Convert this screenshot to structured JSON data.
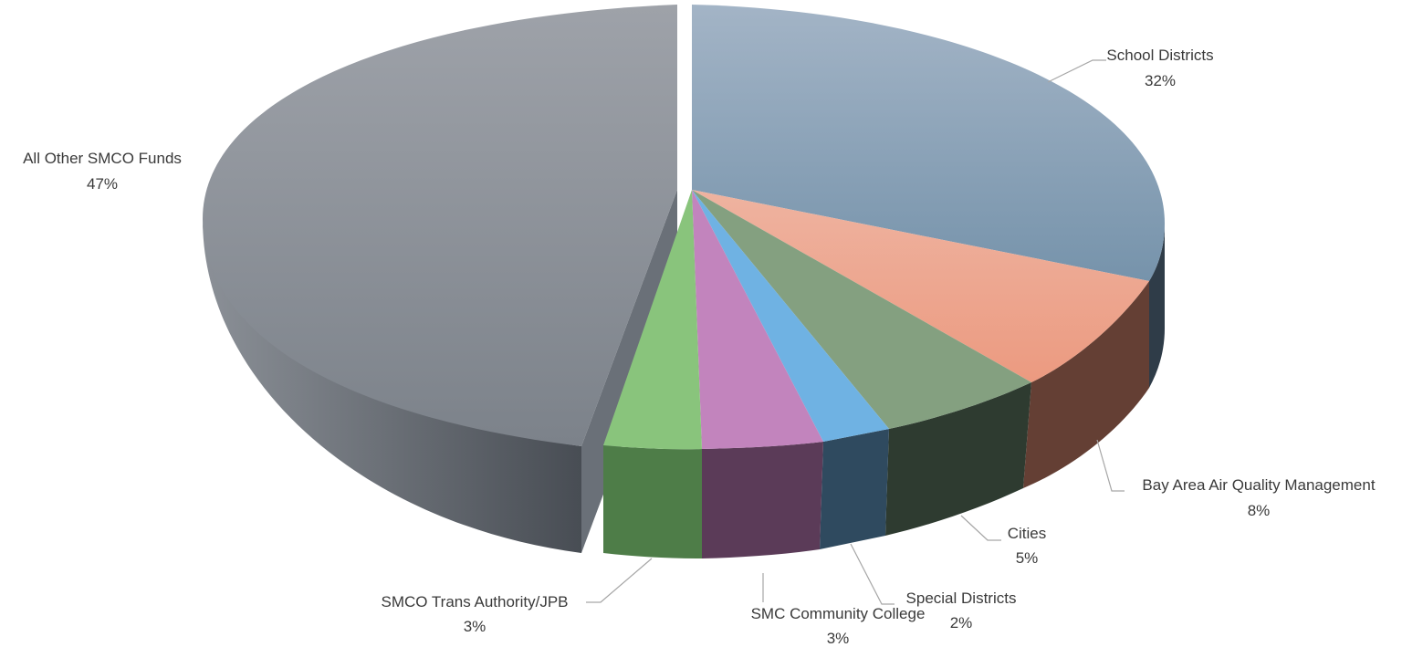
{
  "chart_data": {
    "type": "pie",
    "style": "3d-exploded",
    "title": "",
    "slices": [
      {
        "label": "School Districts",
        "value": 32,
        "value_label": "32%",
        "top_color": "#8fa4b8",
        "side_color": "#2f3c48"
      },
      {
        "label": "Bay Area Air Quality Management",
        "value": 8,
        "value_label": "8%",
        "top_color": "#ee9f86",
        "side_color": "#6a3f33"
      },
      {
        "label": "Cities",
        "value": 5,
        "value_label": "5%",
        "top_color": "#86a182",
        "side_color": "#2f3d30"
      },
      {
        "label": "Special Districts",
        "value": 2,
        "value_label": "2%",
        "top_color": "#6fb2e3",
        "side_color": "#2e4a5e"
      },
      {
        "label": "SMC Community College",
        "value": 3,
        "value_label": "3%",
        "top_color": "#c284bd",
        "side_color": "#5a3a57"
      },
      {
        "label": "SMCO Trans Authority/JPB",
        "value": 3,
        "value_label": "3%",
        "top_color": "#89c47c",
        "side_color": "#4b7845"
      },
      {
        "label": "All Other SMCO Funds",
        "value": 47,
        "value_label": "47%",
        "top_color": "#8e939b",
        "side_color": "#5c6168"
      }
    ]
  }
}
